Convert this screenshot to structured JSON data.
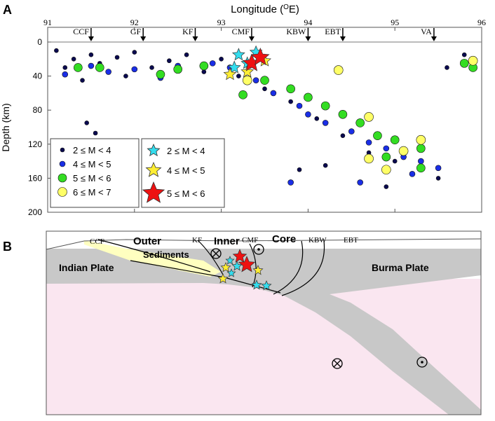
{
  "panel_a": {
    "label": "A",
    "x_title": "Longitude (",
    "x_title_sup": "O",
    "x_title_end": "E)",
    "y_title": "Depth (km)",
    "x_ticks": [
      "91",
      "92",
      "93",
      "94",
      "95",
      "96"
    ],
    "y_ticks": [
      "0",
      "40",
      "80",
      "120",
      "160",
      "200"
    ],
    "faults": [
      {
        "name": "CCF",
        "lon": 91.5
      },
      {
        "name": "GF",
        "lon": 92.1
      },
      {
        "name": "KF",
        "lon": 92.7
      },
      {
        "name": "CMF",
        "lon": 93.35
      },
      {
        "name": "KBW",
        "lon": 94.0
      },
      {
        "name": "EBT",
        "lon": 94.4
      },
      {
        "name": "VA",
        "lon": 95.45
      }
    ],
    "legend_circles": [
      {
        "text": "2 ≤  M < 4",
        "color": "#0a0a50"
      },
      {
        "text": "4 ≤  M < 5",
        "color": "#1a2ee6"
      },
      {
        "text": "5 ≤  M < 6",
        "color": "#33dd22"
      },
      {
        "text": "6 ≤  M < 7",
        "color": "#ffff66"
      }
    ],
    "legend_stars": [
      {
        "text": "2 ≤  M < 4",
        "color": "#33ddee"
      },
      {
        "text": "4 ≤  M < 5",
        "color": "#ffee33"
      },
      {
        "text": "5 ≤  M < 6",
        "color": "#ee1111"
      }
    ]
  },
  "chart_data": {
    "type": "scatter",
    "xlim": [
      91,
      96
    ],
    "ylim": [
      0,
      200
    ],
    "y_inverted": true,
    "series": [
      {
        "name": "2 ≤  M < 4",
        "marker": "circle",
        "color": "#0a0a50",
        "points": [
          [
            91.1,
            10
          ],
          [
            91.2,
            30
          ],
          [
            91.3,
            20
          ],
          [
            91.4,
            45
          ],
          [
            91.5,
            15
          ],
          [
            91.6,
            25
          ],
          [
            91.8,
            18
          ],
          [
            91.9,
            40
          ],
          [
            92.0,
            12
          ],
          [
            92.2,
            30
          ],
          [
            92.4,
            22
          ],
          [
            92.6,
            15
          ],
          [
            92.8,
            35
          ],
          [
            93.0,
            20
          ],
          [
            93.2,
            40
          ],
          [
            93.5,
            55
          ],
          [
            93.8,
            70
          ],
          [
            94.1,
            90
          ],
          [
            94.4,
            110
          ],
          [
            94.7,
            130
          ],
          [
            95.0,
            140
          ],
          [
            95.3,
            150
          ],
          [
            95.5,
            160
          ],
          [
            95.6,
            30
          ],
          [
            95.8,
            15
          ],
          [
            91.45,
            95
          ],
          [
            91.55,
            107
          ],
          [
            93.9,
            150
          ],
          [
            94.2,
            145
          ],
          [
            94.9,
            170
          ]
        ]
      },
      {
        "name": "4 ≤  M < 5",
        "marker": "circle",
        "color": "#1a2ee6",
        "points": [
          [
            91.2,
            38
          ],
          [
            91.5,
            28
          ],
          [
            91.7,
            35
          ],
          [
            92.0,
            32
          ],
          [
            92.3,
            42
          ],
          [
            92.5,
            28
          ],
          [
            92.9,
            25
          ],
          [
            93.1,
            30
          ],
          [
            93.4,
            45
          ],
          [
            93.6,
            60
          ],
          [
            93.9,
            75
          ],
          [
            94.0,
            85
          ],
          [
            94.2,
            95
          ],
          [
            94.5,
            105
          ],
          [
            94.7,
            118
          ],
          [
            94.9,
            125
          ],
          [
            95.1,
            135
          ],
          [
            95.3,
            140
          ],
          [
            95.5,
            148
          ],
          [
            93.8,
            165
          ],
          [
            94.6,
            165
          ],
          [
            95.2,
            155
          ]
        ]
      },
      {
        "name": "5 ≤  M < 6",
        "marker": "circle",
        "color": "#33dd22",
        "points": [
          [
            91.35,
            30
          ],
          [
            91.6,
            30
          ],
          [
            92.3,
            38
          ],
          [
            92.5,
            32
          ],
          [
            92.8,
            28
          ],
          [
            93.5,
            45
          ],
          [
            93.8,
            55
          ],
          [
            94.0,
            65
          ],
          [
            94.2,
            75
          ],
          [
            94.4,
            85
          ],
          [
            94.6,
            95
          ],
          [
            94.8,
            110
          ],
          [
            95.0,
            115
          ],
          [
            95.3,
            125
          ],
          [
            95.8,
            25
          ],
          [
            95.9,
            30
          ],
          [
            93.25,
            62
          ],
          [
            94.9,
            135
          ],
          [
            95.3,
            148
          ]
        ]
      },
      {
        "name": "6 ≤  M < 7",
        "marker": "circle",
        "color": "#ffff66",
        "points": [
          [
            93.3,
            45
          ],
          [
            94.35,
            33
          ],
          [
            94.7,
            88
          ],
          [
            94.7,
            137
          ],
          [
            95.1,
            128
          ],
          [
            95.3,
            115
          ],
          [
            95.9,
            22
          ],
          [
            94.9,
            150
          ]
        ]
      },
      {
        "name": "2 ≤  M < 4",
        "marker": "star",
        "color": "#33ddee",
        "points": [
          [
            93.2,
            15
          ],
          [
            93.3,
            25
          ],
          [
            93.4,
            12
          ],
          [
            93.15,
            30
          ]
        ]
      },
      {
        "name": "4 ≤  M < 5",
        "marker": "star",
        "color": "#ffee33",
        "points": [
          [
            93.1,
            38
          ],
          [
            93.5,
            22
          ],
          [
            93.3,
            35
          ]
        ]
      },
      {
        "name": "5 ≤  M < 6",
        "marker": "star",
        "color": "#ee1111",
        "points": [
          [
            93.35,
            25
          ],
          [
            93.45,
            18
          ]
        ]
      }
    ]
  },
  "panel_b": {
    "label": "B",
    "labels": {
      "ccf": "CCF",
      "outer": "Outer",
      "sediments": "Sediments",
      "kf": "KF",
      "inner": "Inner",
      "cmf": "CMF",
      "core": "Core",
      "kbw": "KBW",
      "ebt": "EBT",
      "indian": "Indian Plate",
      "burma": "Burma Plate"
    },
    "colors": {
      "crust": "#c8c8c8",
      "mantle": "#fae6f0",
      "sediments": "#ffffc0"
    }
  }
}
